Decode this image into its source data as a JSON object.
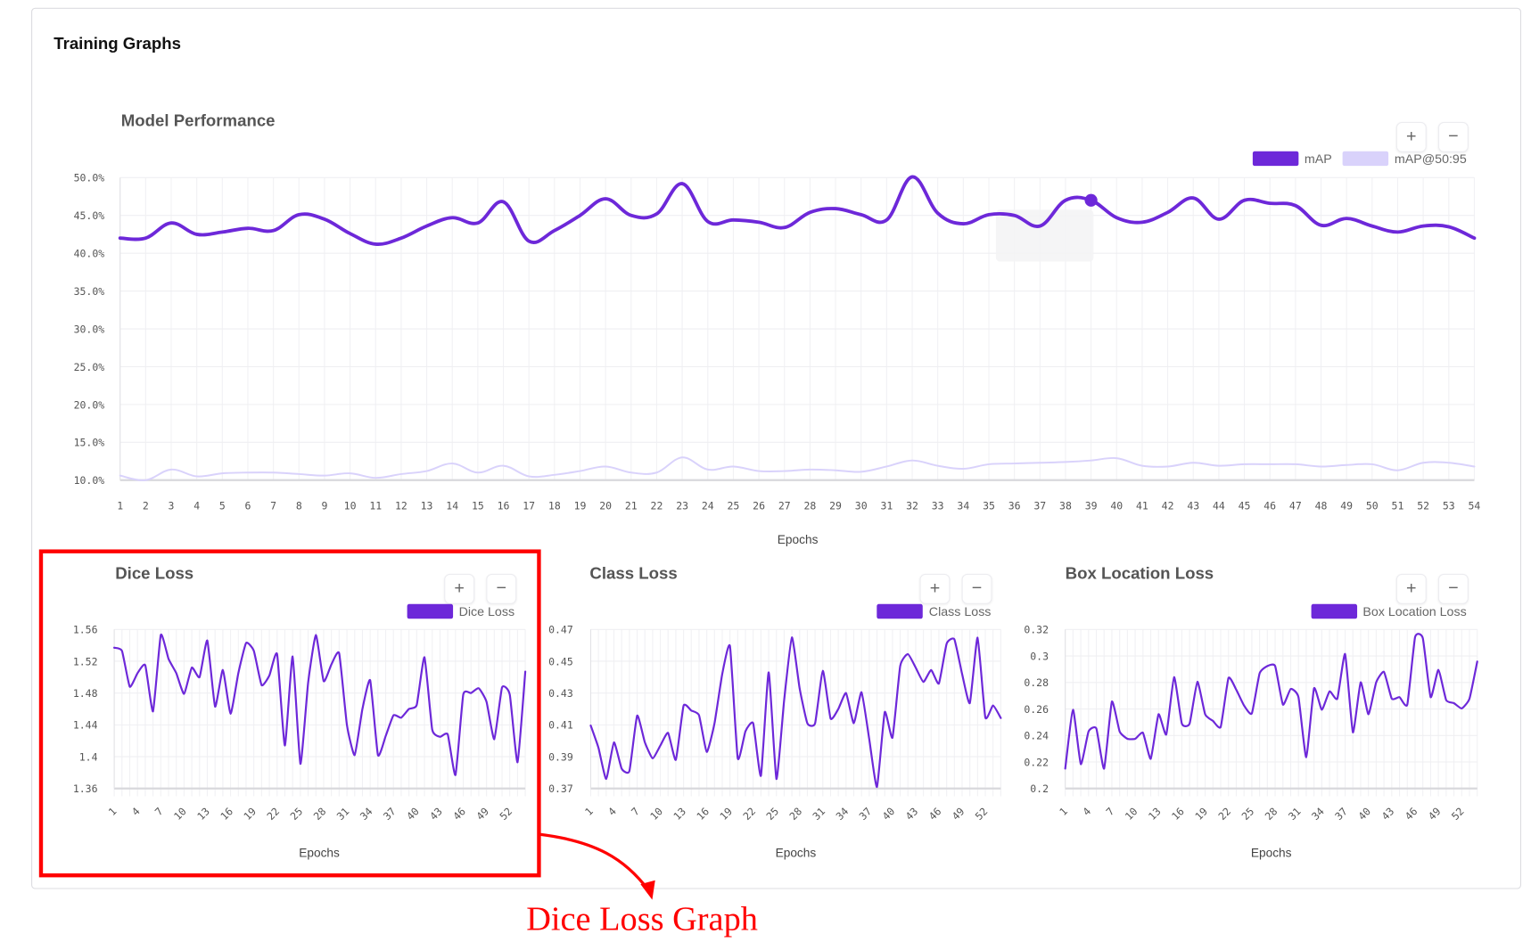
{
  "page": {
    "title": "Training Graphs"
  },
  "colors": {
    "primary": "#6d28d9",
    "secondary": "#d9d2fb",
    "grid": "#efeff2",
    "annotation": "#ff0000"
  },
  "zoom_controls": {
    "plus": "+",
    "minus": "−"
  },
  "annotation": {
    "label": "Dice Loss Graph"
  },
  "chart_data": [
    {
      "id": "performance",
      "type": "line",
      "title": "Model Performance",
      "xlabel": "Epochs",
      "ylabel": "",
      "ylim": [
        10,
        50
      ],
      "yticks": [
        10,
        15,
        20,
        25,
        30,
        35,
        40,
        45,
        50
      ],
      "ytick_format": "percent1",
      "xtick_every": 1,
      "legend_position": "top-right",
      "highlight": {
        "series": "mAP",
        "epoch": 39
      },
      "x": [
        1,
        2,
        3,
        4,
        5,
        6,
        7,
        8,
        9,
        10,
        11,
        12,
        13,
        14,
        15,
        16,
        17,
        18,
        19,
        20,
        21,
        22,
        23,
        24,
        25,
        26,
        27,
        28,
        29,
        30,
        31,
        32,
        33,
        34,
        35,
        36,
        37,
        38,
        39,
        40,
        41,
        42,
        43,
        44,
        45,
        46,
        47,
        48,
        49,
        50,
        51,
        52,
        53,
        54
      ],
      "series": [
        {
          "name": "mAP",
          "color": "#6d28d9",
          "values": [
            42.0,
            42.0,
            44.0,
            42.5,
            42.8,
            43.3,
            43.0,
            45.1,
            44.5,
            42.6,
            41.2,
            42.0,
            43.6,
            44.7,
            44.0,
            46.8,
            41.6,
            43.0,
            45.0,
            47.2,
            45.0,
            45.2,
            49.2,
            44.2,
            44.4,
            44.1,
            43.4,
            45.4,
            45.9,
            45.1,
            44.4,
            50.1,
            45.3,
            43.9,
            45.1,
            45.0,
            43.6,
            47.0,
            47.0,
            44.7,
            44.1,
            45.4,
            47.3,
            44.5,
            47.0,
            46.6,
            46.3,
            43.7,
            44.6,
            43.6,
            42.8,
            43.6,
            43.5,
            42.0
          ]
        },
        {
          "name": "mAP@50:95",
          "color": "#d9d2fb",
          "values": [
            10.6,
            10.0,
            11.4,
            10.5,
            10.9,
            11.0,
            11.0,
            10.8,
            10.6,
            10.9,
            10.3,
            10.8,
            11.2,
            12.2,
            11.0,
            11.9,
            10.5,
            10.7,
            11.2,
            11.8,
            11.0,
            11.0,
            13.0,
            11.4,
            11.8,
            11.2,
            11.2,
            11.4,
            11.3,
            11.1,
            11.8,
            12.6,
            11.9,
            11.5,
            12.1,
            12.2,
            12.3,
            12.4,
            12.6,
            12.9,
            11.9,
            11.8,
            12.3,
            11.9,
            12.1,
            12.1,
            12.1,
            11.8,
            12.0,
            12.1,
            11.3,
            12.3,
            12.3,
            11.8
          ]
        }
      ]
    },
    {
      "id": "dice",
      "type": "line",
      "title": "Dice Loss",
      "xlabel": "Epochs",
      "ylim": [
        1.36,
        1.56
      ],
      "yticks": [
        "1.36",
        "1.4",
        "1.44",
        "1.48",
        "1.52",
        "1.56"
      ],
      "xtick_every": 3,
      "legend_position": "top-right",
      "x": [
        1,
        2,
        3,
        4,
        5,
        6,
        7,
        8,
        9,
        10,
        11,
        12,
        13,
        14,
        15,
        16,
        17,
        18,
        19,
        20,
        21,
        22,
        23,
        24,
        25,
        26,
        27,
        28,
        29,
        30,
        31,
        32,
        33,
        34,
        35,
        36,
        37,
        38,
        39,
        40,
        41,
        42,
        43,
        44,
        45,
        46,
        47,
        48,
        49,
        50,
        51,
        52,
        53,
        54
      ],
      "series": [
        {
          "name": "Dice Loss",
          "color": "#6d28d9",
          "values": [
            1.537,
            1.533,
            1.488,
            1.505,
            1.515,
            1.457,
            1.553,
            1.523,
            1.505,
            1.479,
            1.512,
            1.5,
            1.546,
            1.463,
            1.509,
            1.454,
            1.505,
            1.543,
            1.533,
            1.49,
            1.502,
            1.529,
            1.414,
            1.526,
            1.391,
            1.493,
            1.553,
            1.495,
            1.516,
            1.53,
            1.44,
            1.402,
            1.46,
            1.496,
            1.402,
            1.426,
            1.452,
            1.449,
            1.46,
            1.465,
            1.525,
            1.434,
            1.425,
            1.428,
            1.377,
            1.478,
            1.48,
            1.486,
            1.469,
            1.422,
            1.487,
            1.478,
            1.393,
            1.507
          ]
        }
      ]
    },
    {
      "id": "class",
      "type": "line",
      "title": "Class Loss",
      "xlabel": "Epochs",
      "ylim": [
        0.37,
        0.47
      ],
      "yticks": [
        "0.37",
        "0.39",
        "0.41",
        "0.43",
        "0.45",
        "0.47"
      ],
      "xtick_every": 3,
      "legend_position": "top-right",
      "x": [
        1,
        2,
        3,
        4,
        5,
        6,
        7,
        8,
        9,
        10,
        11,
        12,
        13,
        14,
        15,
        16,
        17,
        18,
        19,
        20,
        21,
        22,
        23,
        24,
        25,
        26,
        27,
        28,
        29,
        30,
        31,
        32,
        33,
        34,
        35,
        36,
        37,
        38,
        39,
        40,
        41,
        42,
        43,
        44,
        45,
        46,
        47,
        48,
        49,
        50,
        51,
        52,
        53,
        54
      ],
      "series": [
        {
          "name": "Class Loss",
          "color": "#6d28d9",
          "values": [
            0.4096,
            0.3956,
            0.376,
            0.399,
            0.3825,
            0.381,
            0.4158,
            0.399,
            0.389,
            0.397,
            0.405,
            0.388,
            0.422,
            0.419,
            0.416,
            0.393,
            0.411,
            0.442,
            0.4595,
            0.389,
            0.406,
            0.411,
            0.378,
            0.443,
            0.376,
            0.4255,
            0.465,
            0.433,
            0.411,
            0.411,
            0.444,
            0.414,
            0.42,
            0.43,
            0.411,
            0.4305,
            0.401,
            0.371,
            0.418,
            0.402,
            0.447,
            0.4545,
            0.446,
            0.437,
            0.4445,
            0.436,
            0.461,
            0.4638,
            0.442,
            0.4237,
            0.4648,
            0.4147,
            0.4222,
            0.4143
          ]
        }
      ]
    },
    {
      "id": "box",
      "type": "line",
      "title": "Box Location Loss",
      "xlabel": "Epochs",
      "ylim": [
        0.2,
        0.32
      ],
      "yticks": [
        "0.2",
        "0.22",
        "0.24",
        "0.26",
        "0.28",
        "0.3",
        "0.32"
      ],
      "xtick_every": 3,
      "legend_position": "top-right",
      "x": [
        1,
        2,
        3,
        4,
        5,
        6,
        7,
        8,
        9,
        10,
        11,
        12,
        13,
        14,
        15,
        16,
        17,
        18,
        19,
        20,
        21,
        22,
        23,
        24,
        25,
        26,
        27,
        28,
        29,
        30,
        31,
        32,
        33,
        34,
        35,
        36,
        37,
        38,
        39,
        40,
        41,
        42,
        43,
        44,
        45,
        46,
        47,
        48,
        49,
        50,
        51,
        52,
        53,
        54
      ],
      "series": [
        {
          "name": "Box Location Loss",
          "color": "#6d28d9",
          "values": [
            0.215,
            0.2594,
            0.2184,
            0.243,
            0.2453,
            0.215,
            0.2655,
            0.243,
            0.2375,
            0.2375,
            0.242,
            0.2224,
            0.256,
            0.2408,
            0.284,
            0.249,
            0.249,
            0.2805,
            0.256,
            0.251,
            0.2465,
            0.2834,
            0.2745,
            0.2626,
            0.2566,
            0.2868,
            0.2924,
            0.2924,
            0.2633,
            0.2751,
            0.2689,
            0.2236,
            0.2755,
            0.2594,
            0.2733,
            0.2678,
            0.3014,
            0.2424,
            0.2801,
            0.256,
            0.2801,
            0.288,
            0.2678,
            0.2689,
            0.2633,
            0.3142,
            0.3133,
            0.2689,
            0.2895,
            0.2667,
            0.2644,
            0.2604,
            0.2678,
            0.2958
          ]
        }
      ]
    }
  ]
}
